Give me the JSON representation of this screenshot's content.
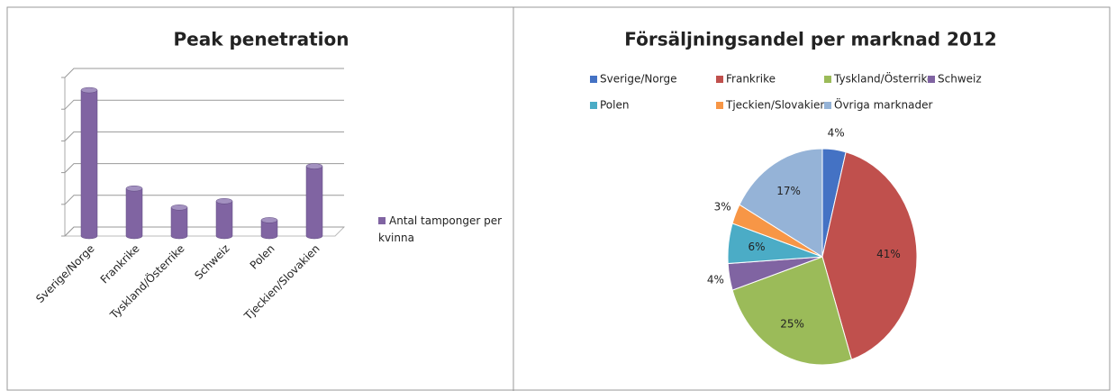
{
  "chart_data": [
    {
      "type": "bar",
      "title": "Peak penetration",
      "categories": [
        "Sverige/Norge",
        "Frankrike",
        "Tyskland/Österrike",
        "Schweiz",
        "Polen",
        "Tjeckien/Slovakien"
      ],
      "series": [
        {
          "name": "Antal tamponger per kvinna",
          "color": "#8064a2",
          "values": [
            4.6,
            1.5,
            0.9,
            1.1,
            0.5,
            2.2
          ]
        }
      ],
      "ylim": [
        0,
        5
      ],
      "yticks": [
        0,
        1,
        2,
        3,
        4,
        5
      ],
      "grid": true,
      "legend": "right"
    },
    {
      "type": "pie",
      "title": "Försäljningsandel per marknad 2012",
      "categories": [
        "Sverige/Norge",
        "Frankrike",
        "Tyskland/Österrike",
        "Schweiz",
        "Polen",
        "Tjeckien/Slovakien",
        "Övriga marknader"
      ],
      "values": [
        4,
        41,
        25,
        4,
        6,
        3,
        17
      ],
      "value_labels": [
        "4%",
        "41%",
        "25%",
        "4%",
        "6%",
        "3%",
        "17%"
      ],
      "colors": [
        "#4472c4",
        "#c0504d",
        "#9bbb59",
        "#8064a2",
        "#4bacc6",
        "#f79646",
        "#95b3d7"
      ],
      "legend": "top"
    }
  ]
}
